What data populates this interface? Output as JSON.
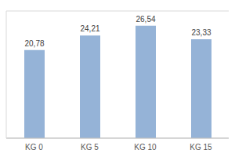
{
  "chart_data": {
    "type": "bar",
    "categories": [
      "KG 0",
      "KG 5",
      "KG 10",
      "KG 15"
    ],
    "values": [
      20.78,
      24.21,
      26.54,
      23.33
    ],
    "value_labels": [
      "20,78",
      "24,21",
      "26,54",
      "23,33"
    ],
    "color": "#95b3d7",
    "ylim": [
      0,
      30
    ],
    "yticks": [
      0,
      5,
      10,
      15,
      20,
      25,
      30
    ],
    "grid": true,
    "data_labels": true,
    "tick_labels": "x"
  }
}
